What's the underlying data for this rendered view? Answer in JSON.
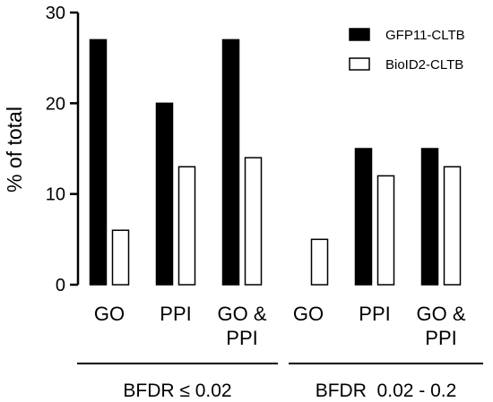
{
  "chart_data": {
    "type": "bar",
    "ylabel": "% of total",
    "ylim": [
      0,
      30
    ],
    "yticks": [
      "0",
      "10",
      "20",
      "30"
    ],
    "categories": [
      {
        "lines": [
          "GO"
        ]
      },
      {
        "lines": [
          "PPI"
        ]
      },
      {
        "lines": [
          "GO &",
          "PPI"
        ]
      },
      {
        "lines": [
          "GO"
        ]
      },
      {
        "lines": [
          "PPI"
        ]
      },
      {
        "lines": [
          "GO &",
          "PPI"
        ]
      }
    ],
    "groups": [
      {
        "label": "BFDR ≤ 0.02",
        "span": [
          0,
          2
        ]
      },
      {
        "label": "BFDR  0.02 - 0.2",
        "span": [
          3,
          5
        ]
      }
    ],
    "series": [
      {
        "name": "GFP11-CLTB",
        "color": "#000000",
        "values": [
          27,
          20,
          27,
          0,
          15,
          15
        ]
      },
      {
        "name": "BioID2-CLTB",
        "color": "#ffffff",
        "values": [
          6,
          13,
          14,
          5,
          12,
          13
        ]
      }
    ],
    "legend_position": "top-right"
  }
}
